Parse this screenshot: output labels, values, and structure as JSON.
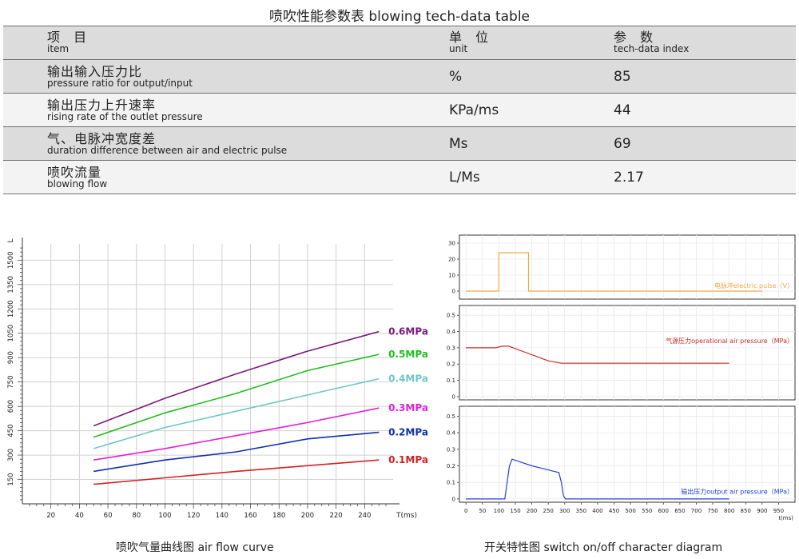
{
  "table": {
    "title": "喷吹性能参数表  blowing tech-data table",
    "header": {
      "item_cn": "项  目",
      "item_en": "item",
      "unit_cn": "单  位",
      "unit_en": "unit",
      "index_cn": "参  数",
      "index_en": "tech-data index"
    },
    "rows": [
      {
        "cn": "输出输入压力比",
        "en": "pressure ratio for output/input",
        "unit": "%",
        "value": "85"
      },
      {
        "cn": "输出压力上升速率",
        "en": "rising rate of the outlet pressure",
        "unit": "KPa/ms",
        "value": "44"
      },
      {
        "cn": "气、电脉冲宽度差",
        "en": "duration difference between air and electric pulse",
        "unit": "Ms",
        "value": "69"
      },
      {
        "cn": "喷吹流量",
        "en": "blowing flow",
        "unit": "L/Ms",
        "value": "2.17"
      }
    ]
  },
  "chart_data": [
    {
      "type": "line",
      "title": "喷吹气量曲线图  air flow curve",
      "xlabel": "T(ms)",
      "ylabel": "L",
      "x_ticks": [
        20,
        40,
        60,
        80,
        100,
        120,
        140,
        160,
        180,
        200,
        220,
        240
      ],
      "y_ticks": [
        150,
        300,
        450,
        600,
        750,
        900,
        1050,
        1200,
        1350,
        1500
      ],
      "xlim": [
        0,
        260
      ],
      "ylim": [
        0,
        1600
      ],
      "grid": true,
      "series": [
        {
          "name": "0.6MPa",
          "color": "#7a1a7a",
          "x": [
            50,
            100,
            150,
            200,
            250
          ],
          "y": [
            480,
            650,
            800,
            940,
            1060
          ]
        },
        {
          "name": "0.5MPa",
          "color": "#1fbf1f",
          "x": [
            50,
            100,
            150,
            200,
            250
          ],
          "y": [
            410,
            560,
            680,
            820,
            920
          ]
        },
        {
          "name": "0.4MPa",
          "color": "#6fc6c6",
          "x": [
            50,
            100,
            150,
            200,
            250
          ],
          "y": [
            340,
            470,
            570,
            670,
            770
          ]
        },
        {
          "name": "0.3MPa",
          "color": "#e020d8",
          "x": [
            50,
            100,
            150,
            200,
            250
          ],
          "y": [
            270,
            340,
            420,
            500,
            590
          ]
        },
        {
          "name": "0.2MPa",
          "color": "#1030a8",
          "x": [
            50,
            100,
            150,
            200,
            250
          ],
          "y": [
            200,
            270,
            320,
            400,
            440
          ]
        },
        {
          "name": "0.1MPa",
          "color": "#d42020",
          "x": [
            50,
            100,
            150,
            200,
            250
          ],
          "y": [
            120,
            160,
            200,
            235,
            270
          ]
        }
      ]
    },
    {
      "type": "line",
      "title": "开关特性图  switch on/off character diagram",
      "xlabel": "t(ms)",
      "x_ticks": [
        0,
        50,
        100,
        150,
        200,
        250,
        300,
        350,
        400,
        450,
        500,
        550,
        600,
        650,
        700,
        750,
        800,
        850,
        900,
        950
      ],
      "xlim": [
        -20,
        1000
      ],
      "panels": [
        {
          "name": "电脉冲electric pulse（V）",
          "color": "#f0a848",
          "y_ticks": [
            0,
            10,
            20,
            30
          ],
          "ylim": [
            -5,
            35
          ],
          "x": [
            0,
            100,
            100,
            190,
            190,
            900
          ],
          "y": [
            0,
            0,
            24,
            24,
            0,
            0
          ]
        },
        {
          "name": "气源压力operational air pressure（MPa）",
          "color": "#d02828",
          "y_ticks": [
            0,
            0.1,
            0.2,
            0.3,
            0.4,
            0.5
          ],
          "ylim": [
            -0.02,
            0.56
          ],
          "x": [
            0,
            90,
            110,
            130,
            170,
            210,
            250,
            290,
            300,
            800
          ],
          "y": [
            0.3,
            0.3,
            0.31,
            0.31,
            0.28,
            0.25,
            0.22,
            0.205,
            0.205,
            0.205
          ]
        },
        {
          "name": "输出压力output air pressure（MPa）",
          "color": "#2040d0",
          "y_ticks": [
            0,
            0.1,
            0.2,
            0.3,
            0.4,
            0.5
          ],
          "ylim": [
            -0.02,
            0.56
          ],
          "x": [
            0,
            118,
            125,
            132,
            140,
            170,
            200,
            240,
            270,
            282,
            290,
            296,
            302,
            800
          ],
          "y": [
            0,
            0,
            0.1,
            0.2,
            0.24,
            0.22,
            0.2,
            0.18,
            0.165,
            0.16,
            0.1,
            0.02,
            0,
            0
          ]
        }
      ]
    }
  ]
}
